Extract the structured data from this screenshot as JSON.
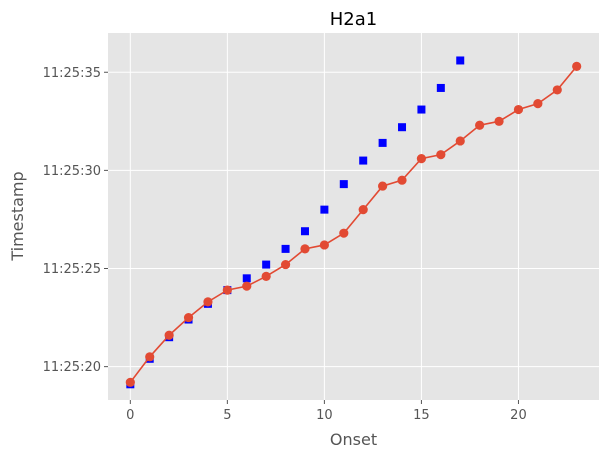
{
  "chart_data": {
    "type": "line",
    "title": "H2a1",
    "xlabel": "Onset",
    "ylabel": "Timestamp",
    "xlim": [
      -1.15,
      24.15
    ],
    "ylim": [
      "11:25:18.3",
      "11:25:37.0"
    ],
    "x_ticks": [
      0,
      5,
      10,
      15,
      20
    ],
    "y_ticks": [
      "11:25:20",
      "11:25:25",
      "11:25:30",
      "11:25:35"
    ],
    "grid": true,
    "background": "#e5e5e5",
    "series": [
      {
        "marker": "square",
        "line": false,
        "color": "#0000ff",
        "x": [
          0,
          1,
          2,
          3,
          4,
          5,
          6,
          7,
          8,
          9,
          10,
          11,
          12,
          13,
          14,
          15,
          16,
          17
        ],
        "y": [
          "11:25:19.1",
          "11:25:20.4",
          "11:25:21.5",
          "11:25:22.4",
          "11:25:23.2",
          "11:25:23.9",
          "11:25:24.5",
          "11:25:25.2",
          "11:25:26.0",
          "11:25:26.9",
          "11:25:28.0",
          "11:25:29.3",
          "11:25:30.5",
          "11:25:31.4",
          "11:25:32.2",
          "11:25:33.1",
          "11:25:34.2",
          "11:25:35.6"
        ]
      },
      {
        "marker": "circle",
        "line": true,
        "color": "#e24a33",
        "x": [
          0,
          1,
          2,
          3,
          4,
          5,
          6,
          7,
          8,
          9,
          10,
          11,
          12,
          13,
          14,
          15,
          16,
          17,
          18,
          19,
          20,
          21,
          22,
          23
        ],
        "y": [
          "11:25:19.2",
          "11:25:20.5",
          "11:25:21.6",
          "11:25:22.5",
          "11:25:23.3",
          "11:25:23.9",
          "11:25:24.1",
          "11:25:24.6",
          "11:25:25.2",
          "11:25:26.0",
          "11:25:26.2",
          "11:25:26.8",
          "11:25:28.0",
          "11:25:29.2",
          "11:25:29.5",
          "11:25:30.6",
          "11:25:30.8",
          "11:25:31.5",
          "11:25:32.3",
          "11:25:32.5",
          "11:25:33.1",
          "11:25:33.4",
          "11:25:34.1",
          "11:25:35.3"
        ]
      }
    ]
  }
}
